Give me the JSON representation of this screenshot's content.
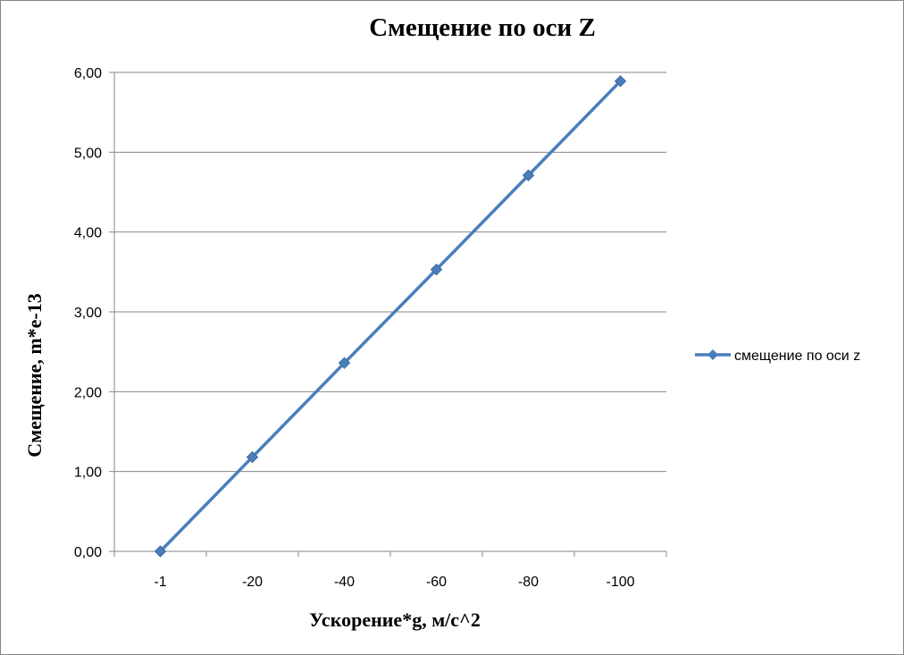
{
  "chart_data": {
    "type": "line",
    "title": "Смещение по оси Z",
    "xlabel": "Ускорение*g, м/с^2",
    "ylabel": "Смещение, m*e-13",
    "categories": [
      "-1",
      "-20",
      "-40",
      "-60",
      "-80",
      "-100"
    ],
    "y_ticks": [
      "0,00",
      "1,00",
      "2,00",
      "3,00",
      "4,00",
      "5,00",
      "6,00"
    ],
    "ylim": [
      0,
      6
    ],
    "grid": "horizontal",
    "legend_position": "right",
    "series": [
      {
        "name": "смещение по оси z",
        "values": [
          0,
          1.18,
          2.36,
          3.53,
          4.71,
          5.89
        ],
        "color": "#4a7ebb",
        "marker": "diamond"
      }
    ]
  }
}
